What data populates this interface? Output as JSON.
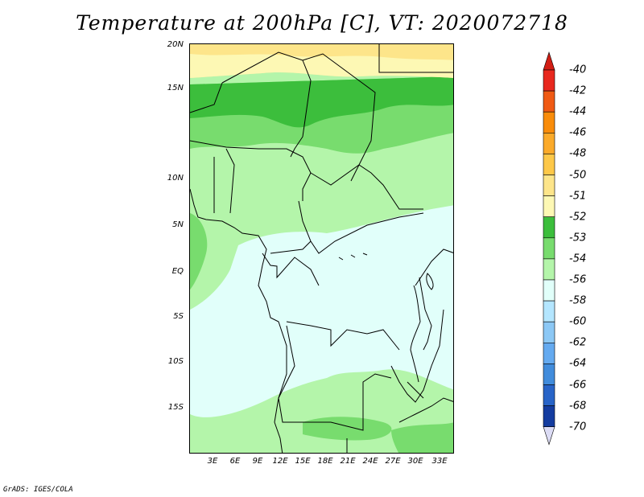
{
  "title": "Temperature at 200hPa [C], VT: 2020072718",
  "credit": "GrADS: IGES/COLA",
  "lat_labels": [
    "20N",
    "15N",
    "10N",
    "5N",
    "EQ",
    "5S",
    "10S",
    "15S"
  ],
  "lon_labels": [
    "3E",
    "6E",
    "9E",
    "12E",
    "15E",
    "18E",
    "21E",
    "24E",
    "27E",
    "30E",
    "33E"
  ],
  "colorbar": {
    "labels": [
      "-40",
      "-42",
      "-44",
      "-46",
      "-48",
      "-50",
      "-51",
      "-52",
      "-53",
      "-54",
      "-56",
      "-58",
      "-60",
      "-62",
      "-64",
      "-66",
      "-68",
      "-70"
    ],
    "colors": [
      "#e8281e",
      "#f05a14",
      "#f98c0a",
      "#fbaa2a",
      "#fdc849",
      "#fde58a",
      "#fdf8b4",
      "#3cbe3c",
      "#78dc6e",
      "#b4f5aa",
      "#e1fffa",
      "#b4e6ff",
      "#8cc8f5",
      "#64aaf0",
      "#418cdc",
      "#2864c8",
      "#143ca0",
      "#0a1e78"
    ],
    "top_arrow_color": "#d21e14",
    "bottom_arrow_color": "#dcdcf5"
  },
  "map_colors": {
    "band_warm": "#fdf8b4",
    "band_yellow": "#fde58a",
    "band_dark_green": "#3cbe3c",
    "band_mid_green": "#78dc6e",
    "band_light_green": "#b4f5aa",
    "band_cyan": "#e1fffa"
  }
}
